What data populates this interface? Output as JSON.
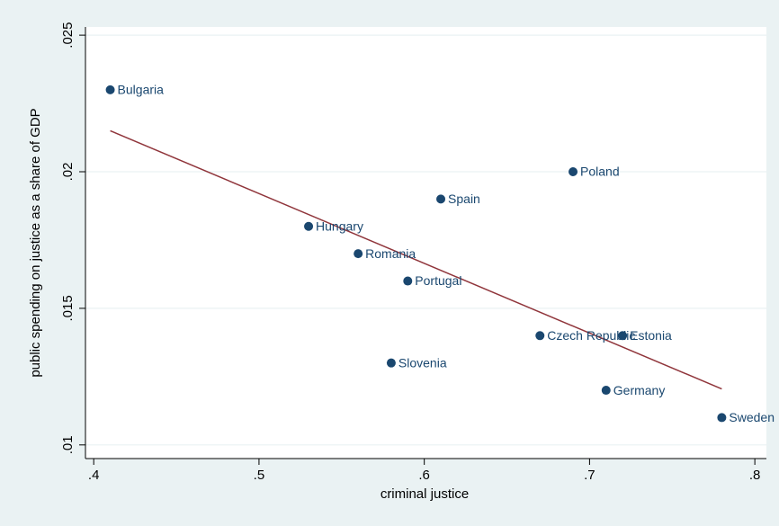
{
  "chart_data": {
    "type": "scatter",
    "x_label": "criminal justice",
    "y_label": "public spending on justice as a share of GDP",
    "xlim": [
      0.395,
      0.807
    ],
    "ylim": [
      0.0095,
      0.0253
    ],
    "xticks": [
      {
        "value": 0.4,
        "label": ".4"
      },
      {
        "value": 0.5,
        "label": ".5"
      },
      {
        "value": 0.6,
        "label": ".6"
      },
      {
        "value": 0.7,
        "label": ".7"
      },
      {
        "value": 0.8,
        "label": ".8"
      }
    ],
    "yticks": [
      {
        "value": 0.01,
        "label": ".01"
      },
      {
        "value": 0.015,
        "label": ".015"
      },
      {
        "value": 0.02,
        "label": ".02"
      },
      {
        "value": 0.025,
        "label": ".025"
      }
    ],
    "grid": true,
    "series": [
      {
        "type": "scatter",
        "color": "#1a476f",
        "x": [
          0.41,
          0.53,
          0.56,
          0.59,
          0.61,
          0.69,
          0.67,
          0.72,
          0.58,
          0.71,
          0.78
        ],
        "values": [
          0.023,
          0.018,
          0.017,
          0.016,
          0.019,
          0.02,
          0.014,
          0.014,
          0.013,
          0.012,
          0.011
        ],
        "labels": [
          "Bulgaria",
          "Hungary",
          "Romania",
          "Portugal",
          "Spain",
          "Poland",
          "Czech Republic",
          "Estonia",
          "Slovenia",
          "Germany",
          "Sweden"
        ]
      },
      {
        "type": "line",
        "color": "#90353b",
        "x": [
          0.41,
          0.78
        ],
        "values": [
          0.0215,
          0.01205
        ]
      }
    ]
  }
}
